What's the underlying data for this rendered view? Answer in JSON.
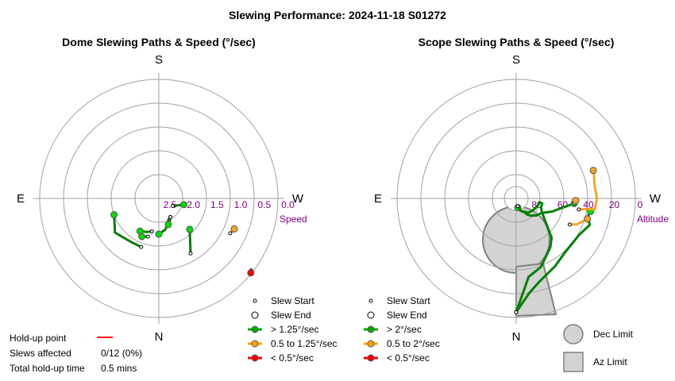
{
  "figure": {
    "title": "Slewing Performance: 2024-11-18 S01272"
  },
  "holdup": {
    "label_point": "Hold-up point",
    "label_slews": "Slews affected",
    "value_slews": "0/12 (0%)",
    "label_total": "Total hold-up time",
    "value_total": "0.5 mins",
    "line_color": "#ff0000"
  },
  "chart_data": [
    {
      "type": "polar",
      "title": "Dome Slewing Paths & Speed (°/sec)",
      "cardinals": {
        "top": "S",
        "bottom": "N",
        "left": "E",
        "right": "W"
      },
      "radial_label": "Speed",
      "radial_ticks": [
        "2.5",
        "2.0",
        "1.5",
        "1.0",
        "0.5",
        "0.0"
      ],
      "radial_range": [
        3.0,
        0.0
      ],
      "grid": true,
      "legend": [
        {
          "label": "Slew Start",
          "kind": "small-circle"
        },
        {
          "label": "Slew End",
          "kind": "circle"
        },
        {
          "label": "> 1.25°/sec",
          "color": "#00aa00"
        },
        {
          "label": "0.5 to 1.25°/sec",
          "color": "#ffa500"
        },
        {
          "label": "< 0.5°/sec",
          "color": "#ff0000"
        }
      ],
      "colors": {
        "fast": "#00dd00",
        "fast_line": "#008000",
        "medium": "#f5a623",
        "slow": "#ff0000"
      },
      "series": [
        {
          "speed": "fast",
          "points": [
            [
              200,
              1.7
            ],
            [
              212,
              1.7
            ],
            [
              232,
              1.6
            ],
            [
              250,
              1.8
            ]
          ]
        },
        {
          "speed": "fast",
          "points": [
            [
              192,
              2.15
            ],
            [
              200,
              2.1
            ],
            [
              210,
              2.05
            ]
          ]
        },
        {
          "speed": "fast",
          "points": [
            [
              196,
              2.0
            ],
            [
              204,
              1.95
            ]
          ]
        },
        {
          "speed": "fast",
          "points": [
            [
              154,
              2.4
            ],
            [
              168,
              2.2
            ],
            [
              180,
              2.1
            ]
          ]
        },
        {
          "speed": "fast",
          "points": [
            [
              148,
              2.45
            ],
            [
              160,
              2.3
            ]
          ]
        },
        {
          "speed": "fast",
          "points": [
            [
              150,
              1.4
            ],
            [
              135,
              1.9
            ]
          ]
        },
        {
          "speed": "fast",
          "points": [
            [
              118,
              2.6
            ],
            [
              104,
              2.35
            ]
          ]
        },
        {
          "speed": "medium",
          "points": [
            [
              116,
              1.0
            ],
            [
              112,
              0.95
            ]
          ]
        },
        {
          "speed": "slow",
          "points": [
            [
              128,
              0.05
            ],
            [
              129,
              0.02
            ]
          ]
        }
      ]
    },
    {
      "type": "polar",
      "title": "Scope Slewing Paths & Speed (°/sec)",
      "cardinals": {
        "top": "S",
        "bottom": "N",
        "left": "E",
        "right": "W"
      },
      "radial_label": "Altitude",
      "radial_ticks": [
        "80",
        "60",
        "40",
        "20",
        "0"
      ],
      "radial_range": [
        90,
        0
      ],
      "grid": true,
      "legend": [
        {
          "label": "Slew Start",
          "kind": "small-circle"
        },
        {
          "label": "Slew End",
          "kind": "circle"
        },
        {
          "label": "> 2°/sec",
          "color": "#00aa00"
        },
        {
          "label": "0.5 to 2°/sec",
          "color": "#ffa500"
        },
        {
          "label": "< 0.5°/sec",
          "color": "#ff0000"
        }
      ],
      "limit_legend": [
        {
          "label": "Dec Limit",
          "kind": "circle"
        },
        {
          "label": "Az Limit",
          "kind": "square"
        }
      ],
      "colors": {
        "fast": "#00dd00",
        "fast_line": "#008000",
        "medium": "#f5a623",
        "slow": "#ff0000",
        "limit": "#d3d3d3"
      },
      "series": [
        {
          "speed": "fast",
          "points": [
            [
              180,
              4.0
            ],
            [
              172,
              18.0
            ],
            [
              164,
              25.0
            ],
            [
              150,
              31.0
            ],
            [
              138,
              35.0
            ],
            [
              120,
              35.0
            ],
            [
              110,
              31.0
            ],
            [
              103,
              34.0
            ],
            [
              100,
              33.0
            ]
          ]
        },
        {
          "speed": "fast",
          "points": [
            [
              180,
              4.0
            ],
            [
              171,
              30.0
            ],
            [
              160,
              35.0
            ],
            [
              145,
              45.0
            ],
            [
              138,
              50.0
            ],
            [
              118,
              68.0
            ],
            [
              110,
              70.0
            ],
            [
              101,
              70.0
            ],
            [
              99,
              72.0
            ],
            [
              110,
              73.0
            ],
            [
              120,
              74.0
            ],
            [
              130,
              75.0
            ],
            [
              140,
              76.0
            ],
            [
              160,
              80.0
            ],
            [
              170,
              83.0
            ]
          ]
        },
        {
          "speed": "fast",
          "points": [
            [
              168,
              84.0
            ],
            [
              160,
              80.0
            ],
            [
              150,
              78.0
            ],
            [
              145,
              75.0
            ],
            [
              140,
              73.0
            ],
            [
              130,
              70.0
            ],
            [
              120,
              68.0
            ],
            [
              110,
              61.0
            ],
            [
              102,
              55.0
            ],
            [
              95,
              46.0
            ]
          ]
        },
        {
          "speed": "medium",
          "points": [
            [
              116,
              45.0
            ],
            [
              113,
              40.0
            ],
            [
              108,
              36.0
            ],
            [
              106,
              34.0
            ]
          ]
        },
        {
          "speed": "medium",
          "points": [
            [
              100,
              42.0
            ],
            [
              99,
              38.0
            ],
            [
              98,
              33.0
            ],
            [
              98,
              30.0
            ],
            [
              90,
              29.0
            ],
            [
              80,
              30.0
            ],
            [
              73,
              28.5
            ],
            [
              70,
              28.0
            ]
          ]
        },
        {
          "speed": "medium",
          "points": [
            [
              95,
              46.0
            ],
            [
              92,
              45.0
            ]
          ]
        }
      ]
    }
  ]
}
